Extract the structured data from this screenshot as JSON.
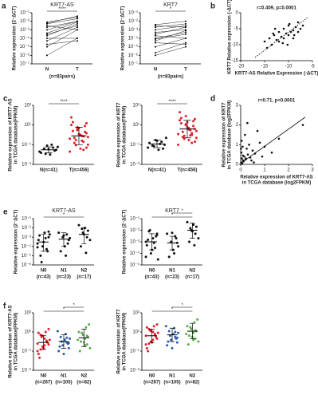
{
  "chart_data": [
    {
      "type": "paired",
      "panel": "a",
      "title": "KRT7-AS",
      "categories": [
        "N",
        "T"
      ],
      "note": "(n=83pairs)",
      "significance": [
        {
          "label": "****",
          "pair": [
            "N",
            "T"
          ]
        }
      ],
      "ylabel": [
        "Relative expression (2⁻ΔCT)"
      ],
      "log": true,
      "ylim": [
        1e-07,
        0.1
      ],
      "yticks": [
        {
          "value": 0.1,
          "label": "10⁻¹"
        },
        {
          "value": 0.01,
          "label": "10⁻²"
        },
        {
          "value": 0.001,
          "label": "10⁻³"
        },
        {
          "value": 0.0001,
          "label": "10⁻⁴"
        },
        {
          "value": 1e-05,
          "label": "10⁻⁵"
        },
        {
          "value": 1e-06,
          "label": "10⁻⁶"
        },
        {
          "value": 1e-07,
          "label": "10⁻⁷"
        }
      ],
      "pairs": [
        [
          0.001,
          0.01
        ],
        [
          0.0002,
          0.005
        ],
        [
          0.005,
          0.02
        ],
        [
          1e-05,
          0.001
        ],
        [
          0.0003,
          0.003
        ],
        [
          0.002,
          0.01
        ],
        [
          1e-06,
          0.0001
        ],
        [
          5e-05,
          0.002
        ],
        [
          0.008,
          0.03
        ],
        [
          0.0001,
          0.0001
        ],
        [
          0.003,
          0.001
        ],
        [
          0.0004,
          0.008
        ],
        [
          2e-05,
          5e-05
        ],
        [
          0.006,
          0.04
        ]
      ]
    },
    {
      "type": "paired",
      "title": "KRT7",
      "categories": [
        "N",
        "T"
      ],
      "note": "(n=83pairs)",
      "significance": [
        {
          "label": "*",
          "pair": [
            "N",
            "T"
          ]
        }
      ],
      "ylabel": [
        "Relative expression (2⁻ΔCT)"
      ],
      "log": true,
      "ylim": [
        1e-07,
        0.1
      ],
      "yticks": [
        {
          "value": 0.1,
          "label": "10⁻¹"
        },
        {
          "value": 0.01,
          "label": "10⁻²"
        },
        {
          "value": 0.001,
          "label": "10⁻³"
        },
        {
          "value": 0.0001,
          "label": "10⁻⁴"
        },
        {
          "value": 1e-05,
          "label": "10⁻⁵"
        },
        {
          "value": 1e-06,
          "label": "10⁻⁶"
        },
        {
          "value": 1e-07,
          "label": "10⁻⁷"
        }
      ],
      "pairs": [
        [
          0.001,
          0.003
        ],
        [
          0.0001,
          0.0005
        ],
        [
          0.003,
          0.002
        ],
        [
          1e-05,
          0.0001
        ],
        [
          0.0005,
          0.001
        ],
        [
          2e-06,
          3e-05
        ],
        [
          0.0002,
          0.0001
        ],
        [
          5e-05,
          0.0008
        ],
        [
          0.002,
          0.005
        ],
        [
          1e-06,
          1e-05
        ],
        [
          0.0003,
          0.002
        ],
        [
          3e-05,
          2e-05
        ],
        [
          0.004,
          0.01
        ],
        [
          8e-05,
          0.0003
        ]
      ]
    },
    {
      "type": "scatter",
      "panel": "b",
      "annotation": "r=0.409, p=0.0001",
      "xlabel": [
        "KRT7-AS Relative Expression (-ΔCT)"
      ],
      "ylabel": [
        "KRT7 Relative expression (-ΔCT)"
      ],
      "xlim": [
        -20,
        -5
      ],
      "ylim": [
        -15,
        0
      ],
      "xticks": [
        -20,
        -15,
        -10,
        -5
      ],
      "yticks": [
        0,
        -5,
        -10,
        -15
      ],
      "fit_x": [
        -17,
        -6
      ],
      "fit_y": [
        -14,
        -1.5
      ],
      "fit_style": "dashed",
      "x": [
        -15,
        -14,
        -13.5,
        -13,
        -12.5,
        -12,
        -12,
        -11.5,
        -11,
        -11,
        -10.5,
        -10,
        -10,
        -9.5,
        -9,
        -9,
        -8.5,
        -8,
        -8,
        -7.5,
        -14.5,
        -12.8,
        -11.2,
        -9.8,
        -8.8,
        -10.2,
        -13.2,
        -7
      ],
      "y": [
        -9,
        -8,
        -10,
        -7,
        -8.5,
        -6,
        -9,
        -7.5,
        -5,
        -8,
        -6.5,
        -7,
        -4,
        -6,
        -5.5,
        -8,
        -4.5,
        -6,
        -3,
        -5,
        -11,
        -5,
        -9.5,
        -3.5,
        -7,
        -10,
        -6.5,
        -4
      ]
    },
    {
      "type": "dot",
      "panel": "c",
      "categories": [
        "N(n=41)",
        "T(n=456)"
      ],
      "colors": [
        "#111111",
        "#e0202a"
      ],
      "significance": [
        {
          "label": "****",
          "pair": [
            "N(n=41)",
            "T(n=456)"
          ]
        }
      ],
      "ylabel": [
        "Relative expression of KRT7-AS",
        "in TCGA database(FPKM)"
      ],
      "log": true,
      "ylim": [
        0.001,
        1000
      ],
      "yticks": [
        {
          "value": 1000,
          "label": "10³"
        },
        {
          "value": 10,
          "label": "10¹"
        },
        {
          "value": 0.1,
          "label": "10⁻¹"
        },
        {
          "value": 0.001,
          "label": "10⁻³"
        }
      ],
      "values": [
        [
          0.02,
          0.03,
          0.05,
          0.01,
          0.08,
          0.04,
          0.015,
          0.06,
          0.025,
          0.1,
          0.035,
          0.012
        ],
        [
          0.05,
          0.2,
          1,
          3,
          0.5,
          10,
          0.1,
          2,
          0.8,
          5,
          0.3,
          20,
          0.02,
          1.5,
          0.7,
          0.04,
          4,
          0.15,
          60,
          0.6,
          8,
          0.25,
          1.2,
          0.09,
          2.5,
          0.4,
          15,
          0.03,
          0.9,
          6
        ]
      ],
      "means": [
        0.03,
        0.8
      ],
      "error_low": [
        0.015,
        0.1
      ],
      "error_high": [
        0.06,
        6
      ]
    },
    {
      "type": "dot",
      "categories": [
        "N(n=41)",
        "T(n=456)"
      ],
      "colors": [
        "#111111",
        "#e0202a"
      ],
      "significance": [
        {
          "label": "****",
          "pair": [
            "N(n=41)",
            "T(n=456)"
          ]
        }
      ],
      "ylabel": [
        "Relative expression of KRT7",
        "in TCGA database(FPKM)"
      ],
      "log": true,
      "ylim": [
        0.001,
        1000
      ],
      "yticks": [
        {
          "value": 1000,
          "label": "10³"
        },
        {
          "value": 10,
          "label": "10¹"
        },
        {
          "value": 0.1,
          "label": "10⁻¹"
        },
        {
          "value": 0.001,
          "label": "10⁻³"
        }
      ],
      "values": [
        [
          0.05,
          0.1,
          0.2,
          0.03,
          0.3,
          0.08,
          0.15,
          0.5,
          0.04,
          0.12,
          0.25,
          0.07
        ],
        [
          0.2,
          1,
          5,
          10,
          2,
          30,
          0.5,
          8,
          3,
          20,
          0.8,
          50,
          0.1,
          4,
          1.5,
          0.3,
          12,
          0.6,
          200,
          2.5,
          25,
          0.9,
          6,
          0.4,
          15,
          1.2,
          40,
          0.15,
          3.5,
          80
        ]
      ],
      "means": [
        0.12,
        4
      ],
      "error_low": [
        0.05,
        0.5
      ],
      "error_high": [
        0.3,
        30
      ]
    },
    {
      "type": "scatter",
      "panel": "d",
      "annotation": "r=0.71, p<0.0001",
      "xlabel": [
        "Relative expression of KRT7-AS",
        "in TCGA database (log2FPKM)"
      ],
      "ylabel": [
        "Relative expression of KRT7",
        "in TCGA database (log2FPKM)"
      ],
      "xlim": [
        0,
        3
      ],
      "ylim": [
        0,
        3
      ],
      "xticks": [
        0,
        1,
        2,
        3
      ],
      "yticks": [
        0,
        1,
        2,
        3
      ],
      "fit_x": [
        0,
        2.7
      ],
      "fit_y": [
        0.05,
        2.4
      ],
      "fit_style": "solid",
      "x": [
        0.02,
        0.05,
        0.1,
        0.03,
        0.15,
        0.08,
        0.2,
        0.04,
        0.3,
        0.12,
        0.06,
        0.25,
        0.4,
        0.18,
        0.5,
        0.09,
        0.35,
        0.6,
        0.22,
        0.8,
        0.45,
        1.0,
        0.7,
        1.3,
        0.28,
        0.55,
        1.6,
        0.9,
        2.6,
        0.01
      ],
      "y": [
        0.1,
        0.3,
        0.2,
        0.6,
        0.4,
        0.9,
        0.25,
        1.2,
        0.5,
        0.15,
        0.05,
        0.8,
        0.35,
        1.5,
        0.7,
        0.45,
        1.0,
        0.55,
        0.3,
        1.1,
        0.2,
        0.9,
        1.7,
        0.6,
        2.1,
        0.1,
        1.3,
        0.4,
        2.0,
        0.8
      ]
    },
    {
      "type": "dot",
      "panel": "e",
      "title": "KRT7-AS",
      "categories": [
        "N0",
        "N1",
        "N2"
      ],
      "category_counts": [
        "(n=43)",
        "(n=23)",
        "(n=17)"
      ],
      "colors": [
        "#111111",
        "#111111",
        "#111111"
      ],
      "significance": [
        {
          "label": "*",
          "pair": [
            "N0",
            "N2"
          ]
        }
      ],
      "ylabel": [
        "Relative expression (2⁻ΔCT)"
      ],
      "log": true,
      "ylim": [
        1e-06,
        0.1
      ],
      "yticks": [
        {
          "value": 0.1,
          "label": "10⁻¹"
        },
        {
          "value": 0.01,
          "label": "10⁻²"
        },
        {
          "value": 0.001,
          "label": "10⁻³"
        },
        {
          "value": 0.0001,
          "label": "10⁻⁴"
        },
        {
          "value": 1e-05,
          "label": "10⁻⁵"
        },
        {
          "value": 1e-06,
          "label": "10⁻⁶"
        }
      ],
      "values": [
        [
          0.0002,
          0.001,
          5e-05,
          0.003,
          0.0001,
          1e-05,
          0.0005,
          0.002,
          3e-05,
          0.0008,
          0.0003,
          2e-06,
          0.0015,
          8e-05,
          0.004
        ],
        [
          0.0005,
          0.002,
          0.0001,
          0.001,
          3e-05,
          0.003,
          0.0008,
          0.0002,
          1e-05,
          0.0015
        ],
        [
          0.001,
          0.01,
          0.003,
          0.0001,
          0.02,
          0.0005,
          0.005,
          2e-05,
          0.002,
          0.008
        ]
      ],
      "means": [
        0.0003,
        0.0006,
        0.002
      ],
      "error_low": [
        3e-05,
        0.0001,
        0.0002
      ],
      "error_high": [
        0.002,
        0.003,
        0.01
      ]
    },
    {
      "type": "dot",
      "title": "KRT7",
      "categories": [
        "N0",
        "N1",
        "N2"
      ],
      "category_counts": [
        "(n=43)",
        "(n=23)",
        "(n=17)"
      ],
      "colors": [
        "#111111",
        "#111111",
        "#111111"
      ],
      "significance": [
        {
          "label": "*",
          "pair": [
            "N0",
            "N2"
          ]
        },
        {
          "label": "*",
          "pair": [
            "N1",
            "N2"
          ]
        }
      ],
      "ylabel": [
        "Relative expression (2⁻ΔCT)"
      ],
      "log": true,
      "ylim": [
        1e-05,
        0.1
      ],
      "yticks": [
        {
          "value": 0.1,
          "label": "10⁻¹"
        },
        {
          "value": 0.01,
          "label": "10⁻²"
        },
        {
          "value": 0.001,
          "label": "10⁻³"
        },
        {
          "value": 0.0001,
          "label": "10⁻⁴"
        },
        {
          "value": 1e-05,
          "label": "10⁻⁵"
        }
      ],
      "values": [
        [
          0.001,
          0.005,
          0.0003,
          0.002,
          0.0001,
          0.008,
          0.0005,
          3e-05,
          0.003,
          0.0008,
          0.0002,
          0.01,
          0.0015,
          5e-05,
          0.004
        ],
        [
          0.0008,
          0.003,
          0.0002,
          0.001,
          5e-05,
          0.005,
          0.0004,
          0.002,
          0.0001,
          0.006
        ],
        [
          0.005,
          0.03,
          0.01,
          0.001,
          0.05,
          0.002,
          0.02,
          0.0005,
          0.008,
          0.015
        ]
      ],
      "means": [
        0.001,
        0.0008,
        0.01
      ],
      "error_low": [
        0.0002,
        0.0002,
        0.002
      ],
      "error_high": [
        0.005,
        0.003,
        0.04
      ]
    },
    {
      "type": "dot",
      "panel": "f",
      "categories": [
        "N0",
        "N1",
        "N2"
      ],
      "category_counts": [
        "(n=267)",
        "(n=105)",
        "(n=82)"
      ],
      "colors": [
        "#e0202a",
        "#2a5db0",
        "#5aad4a"
      ],
      "significance": [
        {
          "label": "*",
          "pair": [
            "N0",
            "N2"
          ]
        },
        {
          "label": "*",
          "pair": [
            "N1",
            "N2"
          ]
        }
      ],
      "ylabel": [
        "Relative expression of KRT7-AS",
        "in TCGA database(FPKM)"
      ],
      "log": true,
      "ylim": [
        0.001,
        1000
      ],
      "yticks": [
        {
          "value": 1000,
          "label": "10³"
        },
        {
          "value": 10,
          "label": "10¹"
        },
        {
          "value": 0.1,
          "label": "10⁻¹"
        },
        {
          "value": 0.001,
          "label": "10⁻³"
        }
      ],
      "values": [
        [
          0.1,
          0.5,
          1,
          2,
          0.3,
          5,
          0.05,
          1.5,
          0.8,
          10,
          0.2,
          3,
          0.02,
          0.6,
          20,
          1.2,
          0.4,
          4,
          0.15,
          8
        ],
        [
          0.2,
          0.8,
          1.5,
          0.4,
          3,
          0.1,
          2,
          0.6,
          6,
          0.05,
          1,
          0.3,
          12,
          0.7,
          2.5
        ],
        [
          0.5,
          2,
          5,
          1,
          10,
          0.2,
          3,
          30,
          0.8,
          8,
          0.1,
          1.5,
          60,
          4,
          0.4
        ]
      ],
      "means": [
        0.8,
        1,
        2.5
      ],
      "error_low": [
        0.15,
        0.2,
        0.3
      ],
      "error_high": [
        4,
        5,
        20
      ]
    },
    {
      "type": "dot",
      "categories": [
        "N0",
        "N1",
        "N2"
      ],
      "category_counts": [
        "(n=267)",
        "(n=105)",
        "(n=82)"
      ],
      "colors": [
        "#e0202a",
        "#2a5db0",
        "#5aad4a"
      ],
      "significance": [
        {
          "label": "*",
          "pair": [
            "N0",
            "N2"
          ]
        },
        {
          "label": "*",
          "pair": [
            "N1",
            "N2"
          ]
        }
      ],
      "ylabel": [
        "Relative expression of KRT7",
        "in TCGA database(FPKM)"
      ],
      "log": true,
      "ylim": [
        0.001,
        1000
      ],
      "yticks": [
        {
          "value": 1000,
          "label": "10³"
        },
        {
          "value": 10,
          "label": "10¹"
        },
        {
          "value": 0.1,
          "label": "10⁻¹"
        },
        {
          "value": 0.001,
          "label": "10⁻³"
        }
      ],
      "values": [
        [
          0.5,
          2,
          5,
          10,
          1,
          20,
          0.2,
          8,
          3,
          40,
          0.8,
          15,
          0.1,
          4,
          60,
          6,
          1.5,
          12,
          0.6,
          30
        ],
        [
          0.8,
          3,
          6,
          1.5,
          12,
          0.4,
          8,
          2,
          25,
          0.2,
          4,
          1,
          40,
          2.5,
          10
        ],
        [
          2,
          8,
          20,
          4,
          40,
          1,
          12,
          100,
          3,
          30,
          0.5,
          6,
          200,
          15,
          1.5
        ]
      ],
      "means": [
        4,
        5,
        12
      ],
      "error_low": [
        0.8,
        1,
        2
      ],
      "error_high": [
        20,
        25,
        80
      ]
    }
  ]
}
